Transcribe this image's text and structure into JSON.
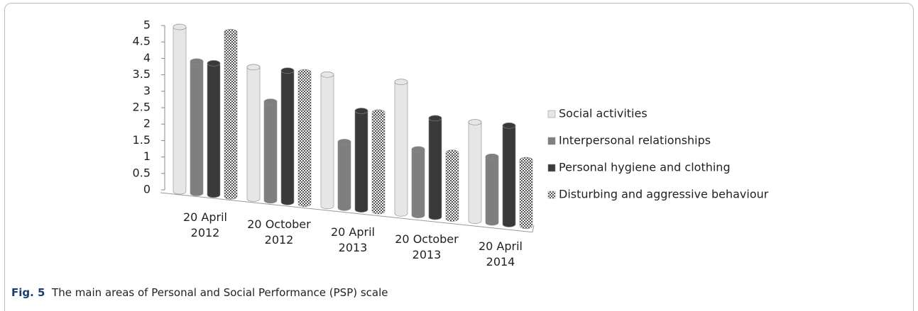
{
  "chart_data": {
    "type": "bar3d",
    "categories": [
      "20 April 2012",
      "20 October 2012",
      "20 April 2013",
      "20 October 2013",
      "20 April 2014"
    ],
    "series": [
      {
        "name": "Social activities",
        "color": "#e6e6e6",
        "values": [
          5,
          4,
          4,
          4,
          3
        ]
      },
      {
        "name": "Interpersonal relationships",
        "color": "#7f7f7f",
        "values": [
          4,
          3,
          2,
          2,
          2
        ]
      },
      {
        "name": "Personal hygiene and clothing",
        "color": "#3a3a3a",
        "values": [
          4,
          4,
          3,
          3,
          3
        ]
      },
      {
        "name": "Disturbing and aggressive behaviour",
        "color": "pattern",
        "values": [
          5,
          4,
          3,
          2,
          2
        ]
      }
    ],
    "ylim": [
      0,
      5
    ],
    "yticks": [
      0,
      0.5,
      1,
      1.5,
      2,
      2.5,
      3,
      3.5,
      4,
      4.5,
      5
    ],
    "legend": "right",
    "caption": {
      "label": "Fig. 5",
      "text": "The main areas of Personal and Social Performance (PSP) scale"
    }
  }
}
